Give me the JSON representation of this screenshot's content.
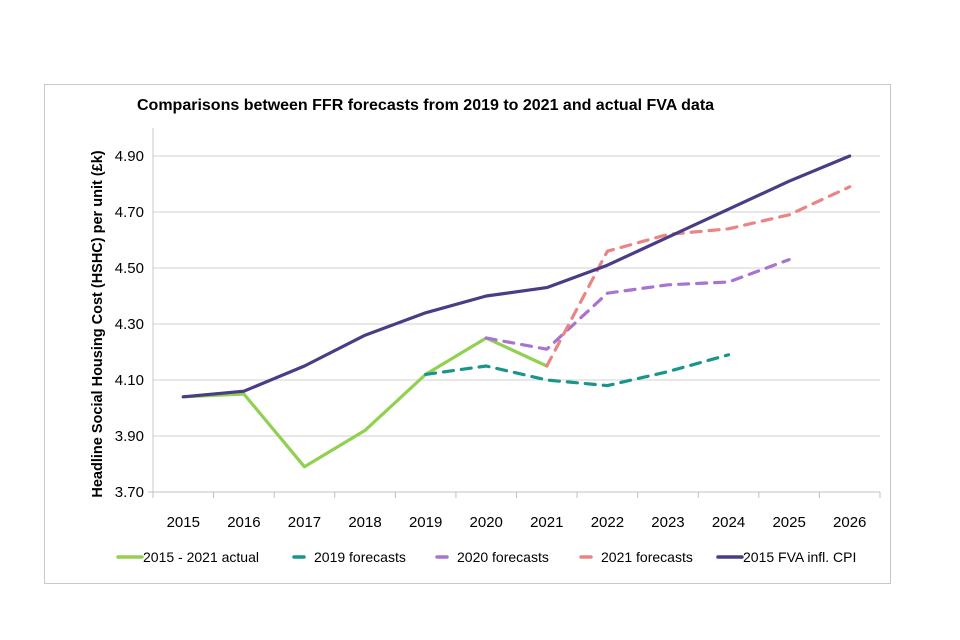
{
  "chart_data": {
    "type": "line",
    "title": "Comparisons between FFR forecasts from 2019 to 2021 and actual FVA data",
    "xlabel": "",
    "ylabel": "Headline Social Housing Cost (HSHC) per unit (£k)",
    "categories": [
      "2015",
      "2016",
      "2017",
      "2018",
      "2019",
      "2020",
      "2021",
      "2022",
      "2023",
      "2024",
      "2025",
      "2026"
    ],
    "ylim": [
      3.7,
      4.9
    ],
    "yticks": [
      "3.70",
      "3.90",
      "4.10",
      "4.30",
      "4.50",
      "4.70",
      "4.90"
    ],
    "ytick_values": [
      3.7,
      3.9,
      4.1,
      4.3,
      4.5,
      4.7,
      4.9
    ],
    "grid": "horizontal",
    "legend_position": "bottom",
    "series": [
      {
        "name": "2015 - 2021 actual",
        "color": "#92d050",
        "style": "solid",
        "values": [
          4.04,
          4.05,
          3.79,
          3.92,
          4.12,
          4.25,
          4.15,
          null,
          null,
          null,
          null,
          null
        ]
      },
      {
        "name": "2019 forecasts",
        "color": "#1a958c",
        "style": "dashed",
        "values": [
          null,
          null,
          null,
          null,
          4.12,
          4.15,
          4.1,
          4.08,
          4.13,
          4.19,
          null,
          null
        ]
      },
      {
        "name": "2020 forecasts",
        "color": "#a774cf",
        "style": "dashed",
        "values": [
          null,
          null,
          null,
          null,
          null,
          4.25,
          4.21,
          4.41,
          4.44,
          4.45,
          4.53,
          null
        ]
      },
      {
        "name": "2021 forecasts",
        "color": "#ea8585",
        "style": "dashed",
        "values": [
          null,
          null,
          null,
          null,
          null,
          null,
          4.15,
          4.56,
          4.62,
          4.64,
          4.69,
          4.79
        ]
      },
      {
        "name": "2015 FVA infl. CPI",
        "color": "#4a3c85",
        "style": "solid",
        "values": [
          4.04,
          4.06,
          4.15,
          4.26,
          4.34,
          4.4,
          4.43,
          4.51,
          4.61,
          4.71,
          4.81,
          4.9
        ]
      }
    ]
  }
}
